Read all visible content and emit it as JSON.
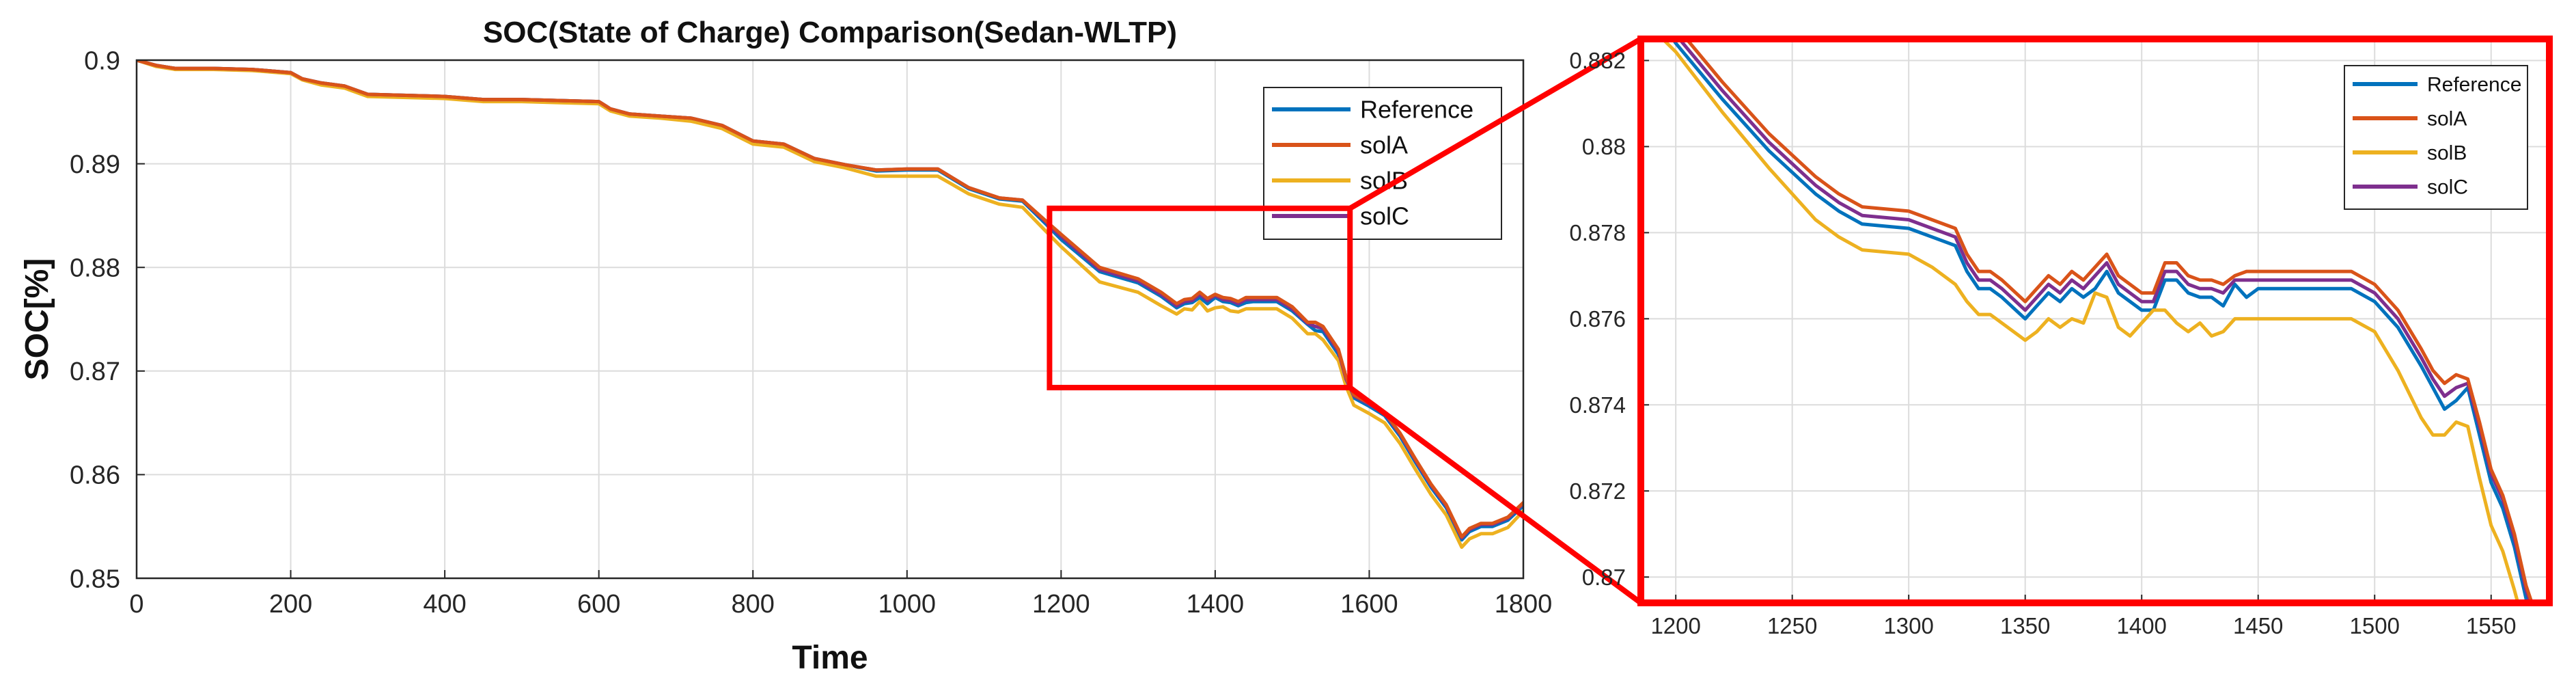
{
  "chart_data": [
    {
      "type": "line",
      "title": "SOC(State of Charge) Comparison(Sedan-WLTP)",
      "xlabel": "Time",
      "ylabel": "SOC[%]",
      "xlim": [
        0,
        1800
      ],
      "ylim": [
        0.85,
        0.9
      ],
      "xticks": [
        0,
        200,
        400,
        600,
        800,
        1000,
        1200,
        1400,
        1600,
        1800
      ],
      "yticks": [
        0.85,
        0.86,
        0.87,
        0.88,
        0.89,
        0.9
      ],
      "ytick_labels": [
        "0.85",
        "0.86",
        "0.87",
        "0.88",
        "0.89",
        "0.9"
      ],
      "grid": true,
      "legend": "top-right",
      "legend_labels": [
        "Reference",
        "solA",
        "solB",
        "solC"
      ],
      "zoom_box": {
        "x": [
          1185,
          1575
        ],
        "y": [
          0.8684,
          0.8857
        ]
      },
      "x": [
        0,
        25,
        50,
        100,
        150,
        200,
        215,
        240,
        270,
        300,
        350,
        400,
        450,
        500,
        550,
        600,
        615,
        640,
        680,
        720,
        760,
        800,
        840,
        880,
        920,
        960,
        1000,
        1040,
        1080,
        1120,
        1150,
        1180,
        1200,
        1250,
        1300,
        1330,
        1350,
        1360,
        1370,
        1380,
        1390,
        1400,
        1410,
        1420,
        1430,
        1440,
        1450,
        1480,
        1500,
        1520,
        1530,
        1540,
        1560,
        1570,
        1580,
        1600,
        1620,
        1640,
        1660,
        1680,
        1700,
        1720,
        1730,
        1745,
        1760,
        1780,
        1800
      ],
      "series": [
        {
          "name": "Reference",
          "color": "#0072BD",
          "values": [
            0.9,
            0.8995,
            0.8992,
            0.8992,
            0.8991,
            0.8988,
            0.8982,
            0.8978,
            0.8975,
            0.8967,
            0.8966,
            0.8965,
            0.8962,
            0.8962,
            0.8961,
            0.896,
            0.8953,
            0.8948,
            0.8946,
            0.8944,
            0.8937,
            0.8922,
            0.8919,
            0.8905,
            0.8899,
            0.8893,
            0.8894,
            0.8894,
            0.8876,
            0.8866,
            0.8864,
            0.8842,
            0.8827,
            0.8796,
            0.8785,
            0.8772,
            0.8761,
            0.8765,
            0.8766,
            0.8771,
            0.8765,
            0.8771,
            0.8767,
            0.8766,
            0.8763,
            0.8766,
            0.8767,
            0.8767,
            0.8758,
            0.8745,
            0.8739,
            0.8738,
            0.8716,
            0.869,
            0.8674,
            0.8666,
            0.8657,
            0.8637,
            0.8612,
            0.8588,
            0.8568,
            0.8537,
            0.8545,
            0.855,
            0.855,
            0.8556,
            0.857
          ]
        },
        {
          "name": "solA",
          "color": "#D95319",
          "values": [
            0.9,
            0.8995,
            0.8992,
            0.8992,
            0.8991,
            0.8988,
            0.8982,
            0.8978,
            0.8975,
            0.8967,
            0.8966,
            0.8965,
            0.8962,
            0.8962,
            0.8961,
            0.896,
            0.8953,
            0.8948,
            0.8946,
            0.8944,
            0.8937,
            0.8922,
            0.8919,
            0.8905,
            0.8899,
            0.8894,
            0.8895,
            0.8895,
            0.8877,
            0.8867,
            0.8865,
            0.8845,
            0.8832,
            0.88,
            0.8789,
            0.8776,
            0.8765,
            0.8769,
            0.877,
            0.8776,
            0.877,
            0.8774,
            0.8771,
            0.877,
            0.8767,
            0.8771,
            0.8771,
            0.8771,
            0.8762,
            0.8747,
            0.8747,
            0.8743,
            0.8721,
            0.8694,
            0.8677,
            0.8669,
            0.866,
            0.864,
            0.8615,
            0.8591,
            0.8571,
            0.854,
            0.8548,
            0.8553,
            0.8553,
            0.8559,
            0.8573
          ]
        },
        {
          "name": "solB",
          "color": "#EDB120",
          "values": [
            0.9,
            0.8994,
            0.8991,
            0.8991,
            0.899,
            0.8987,
            0.8981,
            0.8976,
            0.8973,
            0.8965,
            0.8964,
            0.8963,
            0.896,
            0.896,
            0.8959,
            0.8958,
            0.8951,
            0.8946,
            0.8944,
            0.8941,
            0.8934,
            0.8919,
            0.8916,
            0.8902,
            0.8896,
            0.8888,
            0.8888,
            0.8888,
            0.8871,
            0.8861,
            0.8858,
            0.8835,
            0.882,
            0.8786,
            0.8776,
            0.8763,
            0.8755,
            0.876,
            0.8759,
            0.8767,
            0.8758,
            0.8761,
            0.8762,
            0.8758,
            0.8757,
            0.876,
            0.876,
            0.876,
            0.8751,
            0.8736,
            0.8736,
            0.873,
            0.871,
            0.8685,
            0.8667,
            0.8659,
            0.865,
            0.863,
            0.8605,
            0.8581,
            0.8561,
            0.853,
            0.8538,
            0.8543,
            0.8543,
            0.8549,
            0.8565
          ]
        },
        {
          "name": "solC",
          "color": "#7E2F8E",
          "values": [
            0.9,
            0.8995,
            0.8992,
            0.8992,
            0.8991,
            0.8988,
            0.8982,
            0.8978,
            0.8975,
            0.8967,
            0.8966,
            0.8965,
            0.8962,
            0.8962,
            0.8961,
            0.896,
            0.8953,
            0.8948,
            0.8946,
            0.8944,
            0.8937,
            0.8922,
            0.8919,
            0.8905,
            0.8899,
            0.8894,
            0.8895,
            0.8895,
            0.8877,
            0.8867,
            0.8865,
            0.8844,
            0.883,
            0.8798,
            0.8787,
            0.8774,
            0.8763,
            0.8767,
            0.8768,
            0.8774,
            0.8768,
            0.8773,
            0.8769,
            0.8768,
            0.8765,
            0.8769,
            0.8769,
            0.8769,
            0.876,
            0.8746,
            0.8743,
            0.8741,
            0.8719,
            0.8692,
            0.8676,
            0.8668,
            0.8659,
            0.8639,
            0.8614,
            0.859,
            0.857,
            0.8539,
            0.8547,
            0.8552,
            0.8552,
            0.8558,
            0.8572
          ]
        }
      ]
    },
    {
      "type": "line",
      "title": "",
      "xlabel": "",
      "ylabel": "",
      "xlim": [
        1185,
        1575
      ],
      "ylim": [
        0.8694,
        0.8825
      ],
      "xticks": [
        1200,
        1250,
        1300,
        1350,
        1400,
        1450,
        1500,
        1550
      ],
      "yticks": [
        0.87,
        0.872,
        0.874,
        0.876,
        0.878,
        0.88,
        0.882
      ],
      "ytick_labels": [
        "0.87",
        "0.872",
        "0.874",
        "0.876",
        "0.878",
        "0.88",
        "0.882"
      ],
      "grid": true,
      "legend": "top-right",
      "legend_labels": [
        "Reference",
        "solA",
        "solB",
        "solC"
      ],
      "x": [
        1185,
        1200,
        1220,
        1240,
        1260,
        1270,
        1280,
        1300,
        1310,
        1320,
        1325,
        1330,
        1335,
        1340,
        1350,
        1355,
        1360,
        1365,
        1370,
        1375,
        1380,
        1385,
        1390,
        1395,
        1400,
        1405,
        1410,
        1415,
        1420,
        1425,
        1430,
        1435,
        1440,
        1445,
        1450,
        1480,
        1490,
        1500,
        1510,
        1520,
        1525,
        1530,
        1535,
        1540,
        1545,
        1550,
        1555,
        1560,
        1565,
        1570
      ],
      "series": [
        {
          "name": "Reference",
          "color": "#0072BD",
          "values": [
            0.8836,
            0.8824,
            0.8811,
            0.8799,
            0.8789,
            0.8785,
            0.8782,
            0.8781,
            0.8779,
            0.8777,
            0.8771,
            0.8767,
            0.8767,
            0.8765,
            0.876,
            0.8763,
            0.8766,
            0.8764,
            0.8767,
            0.8765,
            0.8767,
            0.8771,
            0.8766,
            0.8764,
            0.8762,
            0.8762,
            0.8769,
            0.8769,
            0.8766,
            0.8765,
            0.8765,
            0.8763,
            0.8768,
            0.8765,
            0.8767,
            0.8767,
            0.8767,
            0.8764,
            0.8758,
            0.8749,
            0.8744,
            0.8739,
            0.8741,
            0.8744,
            0.8733,
            0.8722,
            0.8716,
            0.8707,
            0.8695,
            0.8687
          ]
        },
        {
          "name": "solA",
          "color": "#D95319",
          "values": [
            0.884,
            0.8828,
            0.8815,
            0.8803,
            0.8793,
            0.8789,
            0.8786,
            0.8785,
            0.8783,
            0.8781,
            0.8775,
            0.8771,
            0.8771,
            0.8769,
            0.8764,
            0.8767,
            0.877,
            0.8768,
            0.8771,
            0.8769,
            0.8772,
            0.8775,
            0.877,
            0.8768,
            0.8766,
            0.8766,
            0.8773,
            0.8773,
            0.877,
            0.8769,
            0.8769,
            0.8768,
            0.877,
            0.8771,
            0.8771,
            0.8771,
            0.8771,
            0.8768,
            0.8762,
            0.8753,
            0.8748,
            0.8745,
            0.8747,
            0.8746,
            0.8736,
            0.8725,
            0.8719,
            0.871,
            0.8698,
            0.869
          ]
        },
        {
          "name": "solB",
          "color": "#EDB120",
          "values": [
            0.883,
            0.8822,
            0.8808,
            0.8795,
            0.8783,
            0.8779,
            0.8776,
            0.8775,
            0.8772,
            0.8768,
            0.8764,
            0.8761,
            0.8761,
            0.8759,
            0.8755,
            0.8757,
            0.876,
            0.8758,
            0.876,
            0.8759,
            0.8766,
            0.8765,
            0.8758,
            0.8756,
            0.8759,
            0.8762,
            0.8762,
            0.8759,
            0.8757,
            0.8759,
            0.8756,
            0.8757,
            0.876,
            0.876,
            0.876,
            0.876,
            0.876,
            0.8757,
            0.8748,
            0.8737,
            0.8733,
            0.8733,
            0.8736,
            0.8735,
            0.8723,
            0.8712,
            0.8706,
            0.8697,
            0.8687,
            0.8679
          ]
        },
        {
          "name": "solC",
          "color": "#7E2F8E",
          "values": [
            0.8838,
            0.8826,
            0.8813,
            0.8801,
            0.8791,
            0.8787,
            0.8784,
            0.8783,
            0.8781,
            0.8779,
            0.8773,
            0.8769,
            0.8769,
            0.8767,
            0.8762,
            0.8765,
            0.8768,
            0.8766,
            0.8769,
            0.8767,
            0.877,
            0.8773,
            0.8768,
            0.8766,
            0.8764,
            0.8764,
            0.8771,
            0.8771,
            0.8768,
            0.8767,
            0.8767,
            0.8766,
            0.8769,
            0.8769,
            0.8769,
            0.8769,
            0.8769,
            0.8766,
            0.876,
            0.8751,
            0.8746,
            0.8742,
            0.8744,
            0.8745,
            0.8735,
            0.8724,
            0.8718,
            0.8709,
            0.8697,
            0.8689
          ]
        }
      ]
    }
  ]
}
